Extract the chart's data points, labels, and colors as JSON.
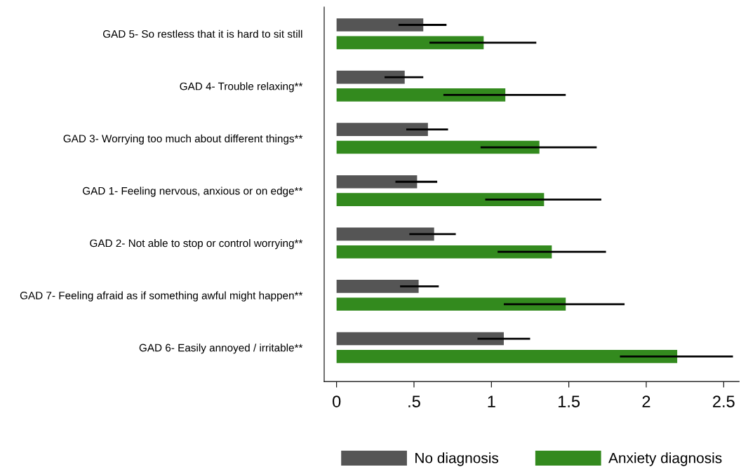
{
  "chart_data": {
    "type": "bar",
    "orientation": "horizontal",
    "categories": [
      "GAD 5- So restless that it is hard to sit still",
      "GAD 4- Trouble relaxing**",
      "GAD 3- Worrying too much about different things**",
      "GAD 1- Feeling nervous, anxious or on edge**",
      "GAD 2- Not able to stop or control worrying**",
      "GAD 7- Feeling afraid as if something awful might happen**",
      "GAD 6- Easily annoyed / irritable**"
    ],
    "series": [
      {
        "name": "No diagnosis",
        "color": "#555555",
        "values": [
          0.56,
          0.44,
          0.59,
          0.52,
          0.63,
          0.53,
          1.08
        ],
        "errors": [
          [
            0.4,
            0.71
          ],
          [
            0.31,
            0.56
          ],
          [
            0.45,
            0.72
          ],
          [
            0.38,
            0.65
          ],
          [
            0.47,
            0.77
          ],
          [
            0.41,
            0.66
          ],
          [
            0.91,
            1.25
          ]
        ]
      },
      {
        "name": "Anxiety diagnosis",
        "color": "#338a1e",
        "values": [
          0.95,
          1.09,
          1.31,
          1.34,
          1.39,
          1.48,
          2.2
        ],
        "errors": [
          [
            0.6,
            1.29
          ],
          [
            0.69,
            1.48
          ],
          [
            0.93,
            1.68
          ],
          [
            0.96,
            1.71
          ],
          [
            1.04,
            1.74
          ],
          [
            1.08,
            1.86
          ],
          [
            1.83,
            2.56
          ]
        ]
      }
    ],
    "xlim": [
      -0.08,
      2.6
    ],
    "xticks": [
      0,
      {
        "value": 0.5,
        "label": ".5"
      },
      1,
      1.5,
      2,
      2.5
    ],
    "grid": false,
    "legend": "bottom"
  }
}
